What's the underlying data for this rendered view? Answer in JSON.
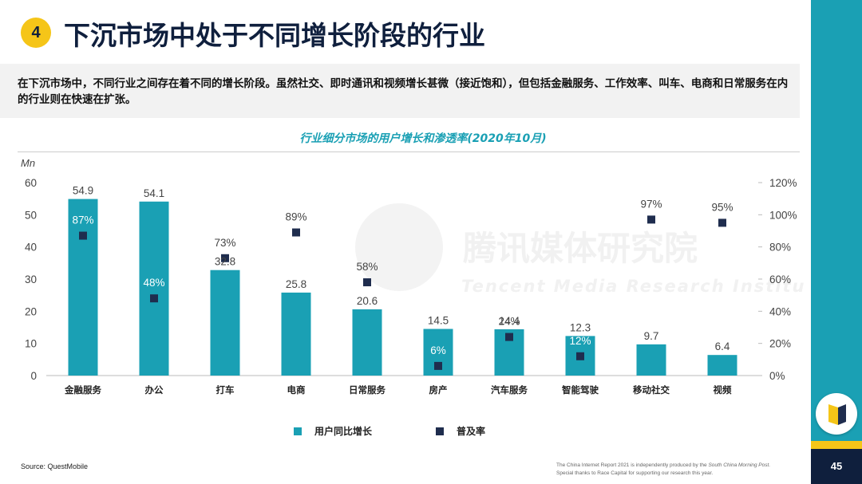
{
  "header": {
    "section_number": "4",
    "title": "下沉市场中处于不同增长阶段的行业"
  },
  "intro": {
    "text": "在下沉市场中，不同行业之间存在着不同的增长阶段。虽然社交、即时通讯和视频增长甚微（接近饱和），但包括金融服务、工作效率、叫车、电商和日常服务在内的行业则在快速在扩张。"
  },
  "watermark": {
    "cn": "腾讯媒体研究院",
    "en": "Tencent Media Research Institute"
  },
  "colors": {
    "bar": "#1aa0b4",
    "marker": "#1f2d4e",
    "accent": "#f5c518",
    "navy": "#0f1f3d"
  },
  "chart_data": {
    "type": "bar",
    "title": "行业细分市场的用户增长和渗透率(2020年10月)",
    "ylabel": "Mn",
    "ylim": [
      0,
      60
    ],
    "y_ticks": [
      0,
      10,
      20,
      30,
      40,
      50,
      60
    ],
    "y2lim": [
      0,
      1.2
    ],
    "y2_ticks": [
      "0%",
      "20%",
      "40%",
      "60%",
      "80%",
      "100%",
      "120%"
    ],
    "categories": [
      "金融服务",
      "办公",
      "打车",
      "电商",
      "日常服务",
      "房产",
      "汽车服务",
      "智能驾驶",
      "移动社交",
      "视频"
    ],
    "series": [
      {
        "name": "用户同比增长",
        "kind": "bar",
        "axis": "left",
        "values": [
          54.9,
          54.1,
          32.8,
          25.8,
          20.6,
          14.5,
          14.4,
          12.3,
          9.7,
          6.4
        ],
        "labels": [
          "54.9",
          "54.1",
          "32.8",
          "25.8",
          "20.6",
          "14.5",
          "14.4",
          "12.3",
          "9.7",
          "6.4"
        ]
      },
      {
        "name": "普及率",
        "kind": "marker",
        "axis": "right",
        "values": [
          0.87,
          0.48,
          0.73,
          0.89,
          0.58,
          0.06,
          0.24,
          0.12,
          0.97,
          0.95
        ],
        "labels": [
          "87%",
          "48%",
          "73%",
          "89%",
          "58%",
          "6%",
          "24%",
          "12%",
          "97%",
          "95%"
        ]
      }
    ],
    "legend_position": "bottom-center",
    "grid": false
  },
  "footer": {
    "source": "Source: QuestMobile",
    "credit_line1_prefix": "The China Internet Report 2021 is independently produced by the ",
    "credit_line1_em": "South China Morning Post.",
    "credit_line2": "Special thanks to Race Capital for supporting our research this year.",
    "page_number": "45"
  }
}
